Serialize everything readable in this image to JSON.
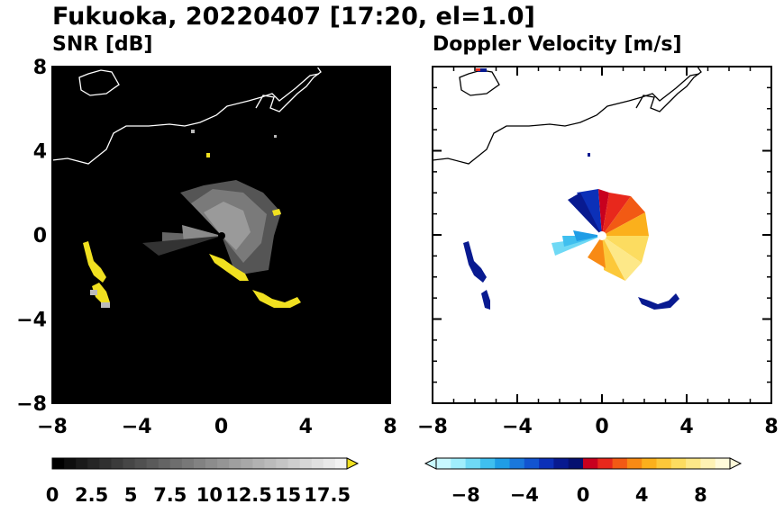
{
  "chart_data": {
    "title": "Fukuoka, 20220407 [17:20, el=1.0]",
    "type": "heatmap",
    "panels": [
      {
        "id": "snr",
        "subtitle": "SNR [dB]",
        "xlim": [
          -8,
          8
        ],
        "ylim": [
          -8,
          8
        ],
        "xticks": [
          "−8",
          "−4",
          "0",
          "4",
          "8"
        ],
        "yticks": [
          "8",
          "4",
          "0",
          "−4",
          "−8"
        ],
        "background": "#000000",
        "colorbar": {
          "min": 0,
          "max": 18.75,
          "levels": 25,
          "extend": "max",
          "extend_color": "#f0e020",
          "low_color": "#000000",
          "high_color": "#f2f2f2",
          "ticks": [
            {
              "value": 0,
              "label": "0"
            },
            {
              "value": 2.5,
              "label": "2.5"
            },
            {
              "value": 5,
              "label": "5"
            },
            {
              "value": 7.5,
              "label": "7.5"
            },
            {
              "value": 10,
              "label": "10"
            },
            {
              "value": 12.5,
              "label": "12.5"
            },
            {
              "value": 15,
              "label": "15"
            },
            {
              "value": 17.5,
              "label": "17.5"
            }
          ]
        }
      },
      {
        "id": "doppler",
        "subtitle": "Doppler Velocity [m/s]",
        "xlim": [
          -8,
          8
        ],
        "ylim": [
          -8,
          8
        ],
        "xticks": [
          "−8",
          "−4",
          "0",
          "4",
          "8"
        ],
        "yticks": [],
        "background": "#ffffff",
        "colorbar": {
          "min": -10,
          "max": 10,
          "levels": 20,
          "extend": "both",
          "colors": [
            "#c8f8ff",
            "#a0eefc",
            "#6fd9f5",
            "#3fbfef",
            "#1f9de6",
            "#1a78dc",
            "#1254d0",
            "#0c30b8",
            "#081a90",
            "#061070",
            "#c8001e",
            "#e8281c",
            "#f25a14",
            "#f88a14",
            "#fbb01c",
            "#fcc83a",
            "#fcdc60",
            "#fde888",
            "#fef2b4",
            "#fffada"
          ],
          "ticks": [
            {
              "value": -8,
              "label": "−8"
            },
            {
              "value": -4,
              "label": "−4"
            },
            {
              "value": 0,
              "label": "0"
            },
            {
              "value": 4,
              "label": "4"
            },
            {
              "value": 8,
              "label": "8"
            }
          ]
        }
      }
    ]
  }
}
